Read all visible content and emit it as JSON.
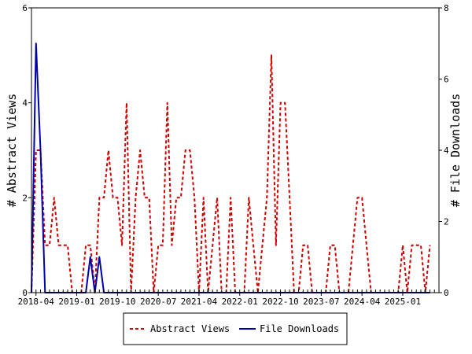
{
  "chart_data": {
    "type": "line",
    "title": "",
    "x_tick_labels": [
      "2018-04",
      "2019-01",
      "2019-10",
      "2020-07",
      "2021-04",
      "2022-01",
      "2022-10",
      "2023-07",
      "2024-04",
      "2025-01"
    ],
    "y_left": {
      "label": "# Abstract Views",
      "range": [
        0,
        6
      ],
      "ticks": [
        0,
        2,
        4,
        6
      ]
    },
    "y_right": {
      "label": "# File Downloads",
      "range": [
        0,
        8
      ],
      "ticks": [
        0,
        2,
        4,
        6,
        8
      ]
    },
    "legend_position": "bottom",
    "grid": false,
    "series": [
      {
        "name": "Abstract Views",
        "axis": "left",
        "color": "#cc0000",
        "style": "dashed",
        "x": [
          "2018-03",
          "2018-04",
          "2018-05",
          "2018-06",
          "2018-07",
          "2018-08",
          "2018-09",
          "2018-10",
          "2018-11",
          "2018-12",
          "2019-01",
          "2019-02",
          "2019-03",
          "2019-04",
          "2019-05",
          "2019-06",
          "2019-07",
          "2019-08",
          "2019-09",
          "2019-10",
          "2019-11",
          "2019-12",
          "2020-01",
          "2020-02",
          "2020-03",
          "2020-04",
          "2020-05",
          "2020-06",
          "2020-07",
          "2020-08",
          "2020-09",
          "2020-10",
          "2020-11",
          "2020-12",
          "2021-01",
          "2021-02",
          "2021-03",
          "2021-04",
          "2021-05",
          "2021-06",
          "2021-07",
          "2021-08",
          "2021-09",
          "2021-10",
          "2021-11",
          "2021-12",
          "2022-01",
          "2022-02",
          "2022-03",
          "2022-04",
          "2022-05",
          "2022-06",
          "2022-07",
          "2022-08",
          "2022-09",
          "2022-10",
          "2022-11",
          "2022-12",
          "2023-01",
          "2023-02",
          "2023-03",
          "2023-04",
          "2023-05",
          "2023-06",
          "2023-07",
          "2023-08",
          "2023-09",
          "2023-10",
          "2023-11",
          "2023-12",
          "2024-01",
          "2024-02",
          "2024-03",
          "2024-04",
          "2024-05",
          "2024-06",
          "2024-07",
          "2024-08",
          "2024-09",
          "2024-10",
          "2024-11",
          "2024-12",
          "2025-01",
          "2025-02",
          "2025-03",
          "2025-04",
          "2025-05",
          "2025-06",
          "2025-07"
        ],
        "values": [
          0,
          3,
          3,
          1,
          1,
          2,
          1,
          1,
          1,
          0,
          0,
          0,
          1,
          1,
          0,
          2,
          2,
          3,
          2,
          2,
          1,
          4,
          0,
          2,
          3,
          2,
          2,
          0,
          1,
          1,
          4,
          1,
          2,
          2,
          3,
          3,
          2,
          0,
          2,
          0,
          1,
          2,
          0,
          0,
          2,
          0,
          0,
          0,
          2,
          1,
          0,
          1,
          2,
          5,
          1,
          4,
          4,
          2,
          0,
          0,
          1,
          1,
          0,
          0,
          0,
          0,
          1,
          1,
          0,
          0,
          0,
          1,
          2,
          2,
          1,
          0,
          0,
          0,
          0,
          0,
          0,
          0,
          1,
          0,
          1,
          1,
          1,
          0,
          1
        ]
      },
      {
        "name": "File Downloads",
        "axis": "right",
        "color": "#0000aa",
        "style": "solid",
        "x": [
          "2018-03",
          "2018-04",
          "2018-05",
          "2018-06",
          "2018-07",
          "2018-08",
          "2018-09",
          "2018-10",
          "2018-11",
          "2018-12",
          "2019-01",
          "2019-02",
          "2019-03",
          "2019-04",
          "2019-05",
          "2019-06",
          "2019-07",
          "2019-08",
          "2019-09",
          "2019-10",
          "2019-11",
          "2019-12",
          "2020-01",
          "2020-02",
          "2020-03",
          "2020-04",
          "2020-05",
          "2020-06",
          "2020-07",
          "2020-08",
          "2020-09",
          "2020-10",
          "2020-11",
          "2020-12",
          "2021-01",
          "2021-02",
          "2021-03",
          "2021-04",
          "2021-05",
          "2021-06",
          "2021-07",
          "2021-08",
          "2021-09",
          "2021-10",
          "2021-11",
          "2021-12",
          "2022-01",
          "2022-02",
          "2022-03",
          "2022-04",
          "2022-05",
          "2022-06",
          "2022-07",
          "2022-08",
          "2022-09",
          "2022-10",
          "2022-11",
          "2022-12",
          "2023-01",
          "2023-02",
          "2023-03",
          "2023-04",
          "2023-05",
          "2023-06",
          "2023-07",
          "2023-08",
          "2023-09",
          "2023-10",
          "2023-11",
          "2023-12",
          "2024-01",
          "2024-02",
          "2024-03",
          "2024-04",
          "2024-05",
          "2024-06",
          "2024-07",
          "2024-08",
          "2024-09",
          "2024-10",
          "2024-11",
          "2024-12",
          "2025-01",
          "2025-02",
          "2025-03",
          "2025-04",
          "2025-05",
          "2025-06",
          "2025-07"
        ],
        "values": [
          0,
          7,
          4,
          0,
          0,
          0,
          0,
          0,
          0,
          0,
          0,
          0,
          0,
          1,
          0,
          1,
          0,
          0,
          0,
          0,
          0,
          0,
          0,
          0,
          0,
          0,
          0,
          0,
          0,
          0,
          0,
          0,
          0,
          0,
          0,
          0,
          0,
          0,
          0,
          0,
          0,
          0,
          0,
          0,
          0,
          0,
          0,
          0,
          0,
          0,
          0,
          0,
          0,
          0,
          0,
          0,
          0,
          0,
          0,
          0,
          0,
          0,
          0,
          0,
          0,
          0,
          0,
          0,
          0,
          0,
          0,
          0,
          0,
          0,
          0,
          0,
          0,
          0,
          0,
          0,
          0,
          0,
          0,
          0,
          0,
          0,
          0,
          0,
          0
        ]
      }
    ]
  }
}
